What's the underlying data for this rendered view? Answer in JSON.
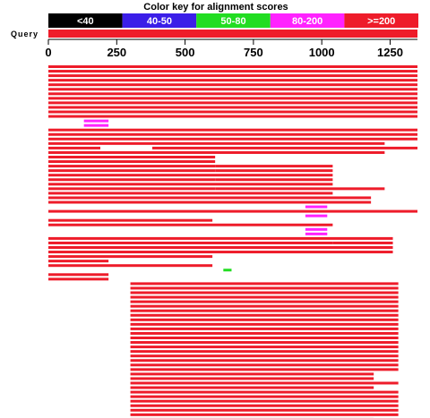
{
  "chart_data": {
    "type": "alignment-overview",
    "title": "Color key for alignment scores",
    "query_label": "Query",
    "query_length": 1350,
    "color_key": [
      {
        "label": "<40",
        "color": "#000000"
      },
      {
        "label": "40-50",
        "color": "#3b1ee8"
      },
      {
        "label": "50-80",
        "color": "#22dd22"
      },
      {
        "label": "80-200",
        "color": "#ff22ff"
      },
      {
        "label": ">=200",
        "color": "#ee1c2a"
      }
    ],
    "x_ticks": [
      0,
      250,
      500,
      750,
      1000,
      1250
    ],
    "xlim": [
      0,
      1350
    ],
    "hits": [
      [
        {
          "s": 0,
          "e": 1350,
          "c": 4
        }
      ],
      [
        {
          "s": 0,
          "e": 1350,
          "c": 4
        }
      ],
      [
        {
          "s": 0,
          "e": 1350,
          "c": 4
        }
      ],
      [
        {
          "s": 0,
          "e": 1350,
          "c": 4
        }
      ],
      [
        {
          "s": 0,
          "e": 1350,
          "c": 4
        }
      ],
      [
        {
          "s": 0,
          "e": 1350,
          "c": 4
        }
      ],
      [
        {
          "s": 0,
          "e": 1350,
          "c": 4
        }
      ],
      [
        {
          "s": 0,
          "e": 1350,
          "c": 4
        }
      ],
      [
        {
          "s": 0,
          "e": 1350,
          "c": 4
        }
      ],
      [
        {
          "s": 0,
          "e": 1350,
          "c": 4
        }
      ],
      [
        {
          "s": 0,
          "e": 1350,
          "c": 4
        }
      ],
      [
        {
          "s": 0,
          "e": 1350,
          "c": 4
        }
      ],
      [
        {
          "s": 130,
          "e": 220,
          "c": 3
        }
      ],
      [
        {
          "s": 130,
          "e": 220,
          "c": 3
        }
      ],
      [
        {
          "s": 0,
          "e": 1350,
          "c": 4
        }
      ],
      [
        {
          "s": 0,
          "e": 1350,
          "c": 4
        }
      ],
      [
        {
          "s": 0,
          "e": 1350,
          "c": 4
        }
      ],
      [
        {
          "s": 0,
          "e": 1230,
          "c": 4
        }
      ],
      [
        {
          "s": 0,
          "e": 190,
          "c": 4
        },
        {
          "s": 380,
          "e": 1350,
          "c": 4
        }
      ],
      [
        {
          "s": 0,
          "e": 1230,
          "c": 4
        }
      ],
      [
        {
          "s": 0,
          "e": 610,
          "c": 4
        }
      ],
      [
        {
          "s": 0,
          "e": 610,
          "c": 4
        }
      ],
      [
        {
          "s": 0,
          "e": 610,
          "c": 4
        },
        {
          "s": 610,
          "e": 1040,
          "c": 4
        }
      ],
      [
        {
          "s": 0,
          "e": 610,
          "c": 4
        },
        {
          "s": 610,
          "e": 1040,
          "c": 4
        }
      ],
      [
        {
          "s": 0,
          "e": 1040,
          "c": 4
        }
      ],
      [
        {
          "s": 0,
          "e": 610,
          "c": 4
        },
        {
          "s": 610,
          "e": 1040,
          "c": 4
        }
      ],
      [
        {
          "s": 0,
          "e": 1040,
          "c": 4
        }
      ],
      [
        {
          "s": 0,
          "e": 610,
          "c": 4
        },
        {
          "s": 610,
          "e": 1230,
          "c": 4
        }
      ],
      [
        {
          "s": 0,
          "e": 1040,
          "c": 4
        }
      ],
      [
        {
          "s": 0,
          "e": 1180,
          "c": 4
        }
      ],
      [
        {
          "s": 0,
          "e": 1180,
          "c": 4
        }
      ],
      [
        {
          "s": 940,
          "e": 1020,
          "c": 3
        }
      ],
      [
        {
          "s": 0,
          "e": 1350,
          "c": 4
        }
      ],
      [
        {
          "s": 940,
          "e": 1020,
          "c": 3
        }
      ],
      [
        {
          "s": 0,
          "e": 600,
          "c": 4
        }
      ],
      [
        {
          "s": 0,
          "e": 1040,
          "c": 4
        }
      ],
      [
        {
          "s": 940,
          "e": 1020,
          "c": 3
        }
      ],
      [
        {
          "s": 940,
          "e": 1020,
          "c": 3
        }
      ],
      [
        {
          "s": 0,
          "e": 1260,
          "c": 4
        }
      ],
      [
        {
          "s": 0,
          "e": 1040,
          "c": 4
        },
        {
          "s": 1040,
          "e": 1260,
          "c": 4
        }
      ],
      [
        {
          "s": 0,
          "e": 1260,
          "c": 4
        }
      ],
      [
        {
          "s": 0,
          "e": 1260,
          "c": 4
        }
      ],
      [
        {
          "s": 0,
          "e": 600,
          "c": 4
        }
      ],
      [
        {
          "s": 0,
          "e": 220,
          "c": 4
        }
      ],
      [
        {
          "s": 0,
          "e": 600,
          "c": 4
        }
      ],
      [
        {
          "s": 640,
          "e": 670,
          "c": 2
        }
      ],
      [
        {
          "s": 0,
          "e": 220,
          "c": 4
        }
      ],
      [
        {
          "s": 0,
          "e": 220,
          "c": 4
        }
      ],
      [
        {
          "s": 300,
          "e": 1280,
          "c": 4
        }
      ],
      [
        {
          "s": 300,
          "e": 1280,
          "c": 4
        }
      ],
      [
        {
          "s": 300,
          "e": 1280,
          "c": 4
        }
      ],
      [
        {
          "s": 300,
          "e": 1280,
          "c": 4
        }
      ],
      [
        {
          "s": 300,
          "e": 1280,
          "c": 4
        }
      ],
      [
        {
          "s": 300,
          "e": 1280,
          "c": 4
        }
      ],
      [
        {
          "s": 300,
          "e": 1280,
          "c": 4
        }
      ],
      [
        {
          "s": 300,
          "e": 1280,
          "c": 4
        }
      ],
      [
        {
          "s": 300,
          "e": 1280,
          "c": 4
        }
      ],
      [
        {
          "s": 300,
          "e": 1280,
          "c": 4
        }
      ],
      [
        {
          "s": 300,
          "e": 1280,
          "c": 4
        }
      ],
      [
        {
          "s": 300,
          "e": 1280,
          "c": 4
        }
      ],
      [
        {
          "s": 300,
          "e": 1280,
          "c": 4
        }
      ],
      [
        {
          "s": 300,
          "e": 1280,
          "c": 4
        }
      ],
      [
        {
          "s": 300,
          "e": 1280,
          "c": 4
        }
      ],
      [
        {
          "s": 300,
          "e": 1280,
          "c": 4
        }
      ],
      [
        {
          "s": 300,
          "e": 1280,
          "c": 4
        }
      ],
      [
        {
          "s": 300,
          "e": 1280,
          "c": 4
        }
      ],
      [
        {
          "s": 300,
          "e": 1280,
          "c": 4
        }
      ],
      [
        {
          "s": 300,
          "e": 1280,
          "c": 4
        }
      ],
      [
        {
          "s": 300,
          "e": 1190,
          "c": 4
        }
      ],
      [
        {
          "s": 300,
          "e": 1190,
          "c": 4
        }
      ],
      [
        {
          "s": 300,
          "e": 1280,
          "c": 4
        }
      ],
      [
        {
          "s": 300,
          "e": 1190,
          "c": 4
        }
      ],
      [
        {
          "s": 300,
          "e": 1280,
          "c": 4
        }
      ],
      [
        {
          "s": 300,
          "e": 1280,
          "c": 4
        }
      ],
      [
        {
          "s": 300,
          "e": 1280,
          "c": 4
        }
      ],
      [
        {
          "s": 300,
          "e": 1280,
          "c": 4
        }
      ],
      [
        {
          "s": 300,
          "e": 1280,
          "c": 4
        }
      ],
      [
        {
          "s": 300,
          "e": 1280,
          "c": 4
        }
      ],
      [
        {
          "s": 300,
          "e": 1190,
          "c": 4
        }
      ]
    ]
  }
}
